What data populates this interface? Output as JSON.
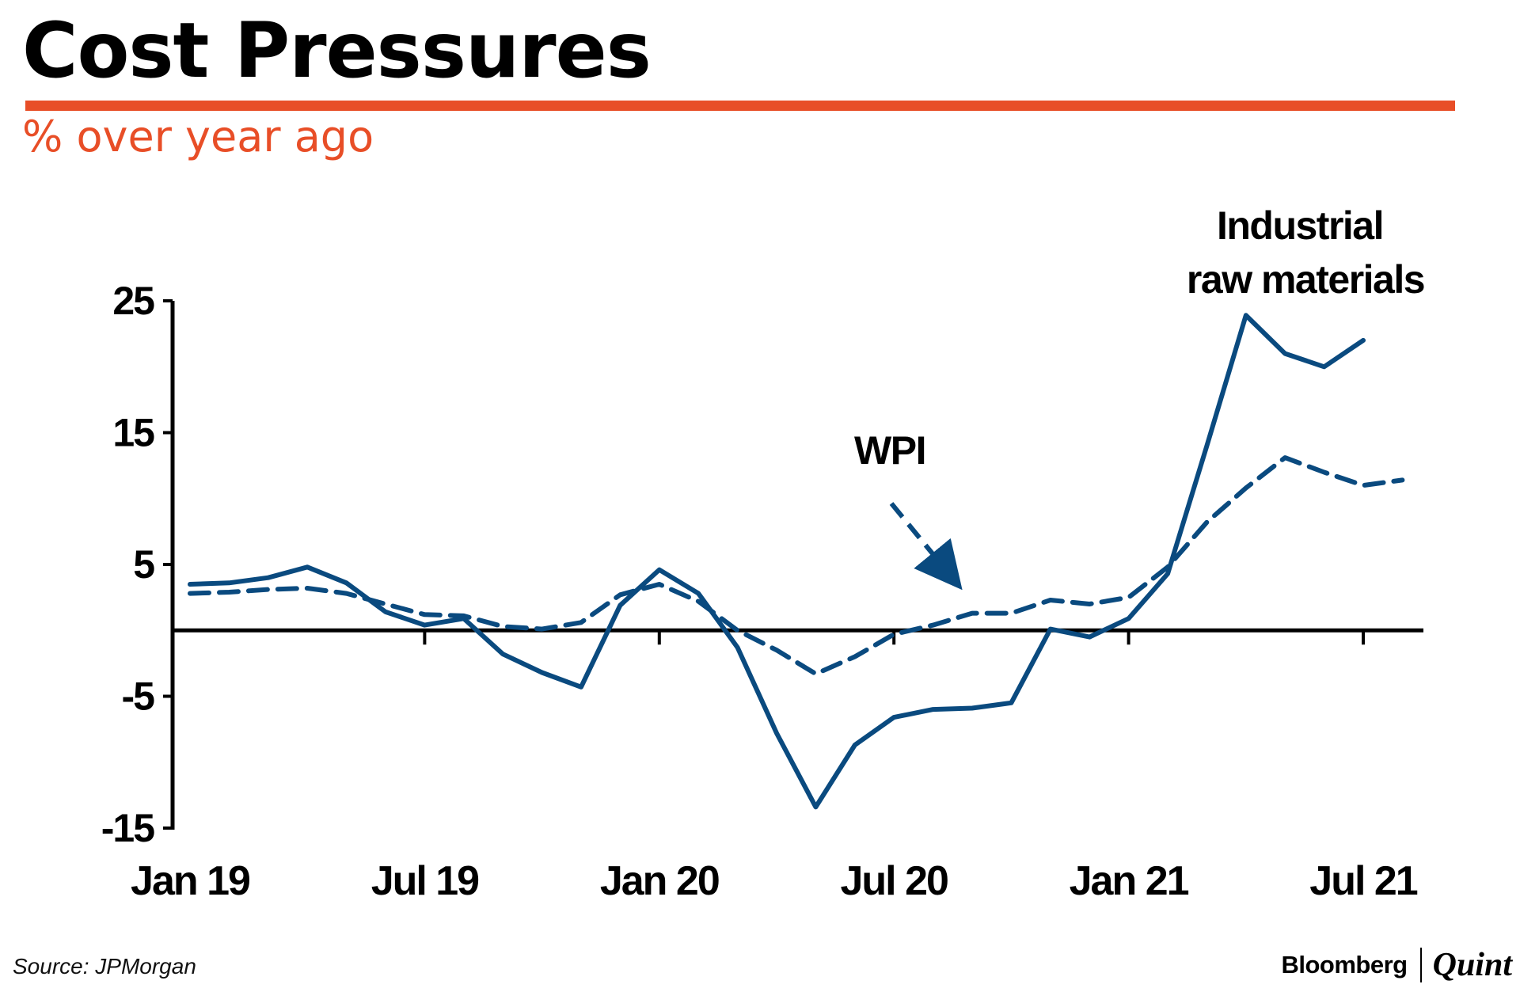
{
  "header": {
    "title": "Cost Pressures",
    "subtitle": "% over year ago"
  },
  "footer": {
    "source": "Source: JPMorgan",
    "brand_primary": "Bloomberg",
    "brand_secondary": "Quint"
  },
  "colors": {
    "accent": "#e84e27",
    "series": "#0a4a7f",
    "axis": "#000000"
  },
  "chart_data": {
    "type": "line",
    "title": "Cost Pressures",
    "subtitle": "% over year ago",
    "xlabel": "",
    "ylabel": "",
    "ylim": [
      -15,
      25
    ],
    "yticks": [
      25,
      15,
      5,
      -5,
      -15
    ],
    "ytick_labels": [
      "25",
      "15",
      "5",
      "-5",
      "-15"
    ],
    "xticks": [
      "Jan 19",
      "Jul 19",
      "Jan 20",
      "Jul 20",
      "Jan 21",
      "Jul 21"
    ],
    "xtick_index": [
      0,
      6,
      12,
      18,
      24,
      30
    ],
    "grid": false,
    "zero_line": true,
    "series": [
      {
        "name": "Industrial raw materials",
        "label": [
          "Industrial",
          "raw materials"
        ],
        "style": "solid",
        "values": [
          3.5,
          3.6,
          4.0,
          4.8,
          3.6,
          1.4,
          0.4,
          0.9,
          -1.8,
          -3.2,
          -4.3,
          1.9,
          4.6,
          2.8,
          -1.3,
          -7.8,
          -13.4,
          -8.7,
          -6.6,
          -6.0,
          -5.9,
          -5.5,
          0.1,
          -0.5,
          0.9,
          4.3,
          14.0,
          23.9,
          21.0,
          20.0,
          22.0
        ]
      },
      {
        "name": "WPI",
        "label": [
          "WPI"
        ],
        "style": "dashed",
        "values": [
          2.8,
          2.9,
          3.1,
          3.2,
          2.8,
          2.0,
          1.2,
          1.1,
          0.3,
          0.1,
          0.6,
          2.7,
          3.5,
          2.2,
          0.0,
          -1.5,
          -3.3,
          -2.0,
          -0.3,
          0.4,
          1.3,
          1.3,
          2.3,
          2.0,
          2.5,
          4.8,
          8.2,
          10.8,
          13.1,
          12.0,
          11.0,
          11.4
        ]
      }
    ],
    "annotations": [
      {
        "text": "WPI",
        "points_to": "WPI",
        "arrow": "dashed"
      }
    ]
  }
}
